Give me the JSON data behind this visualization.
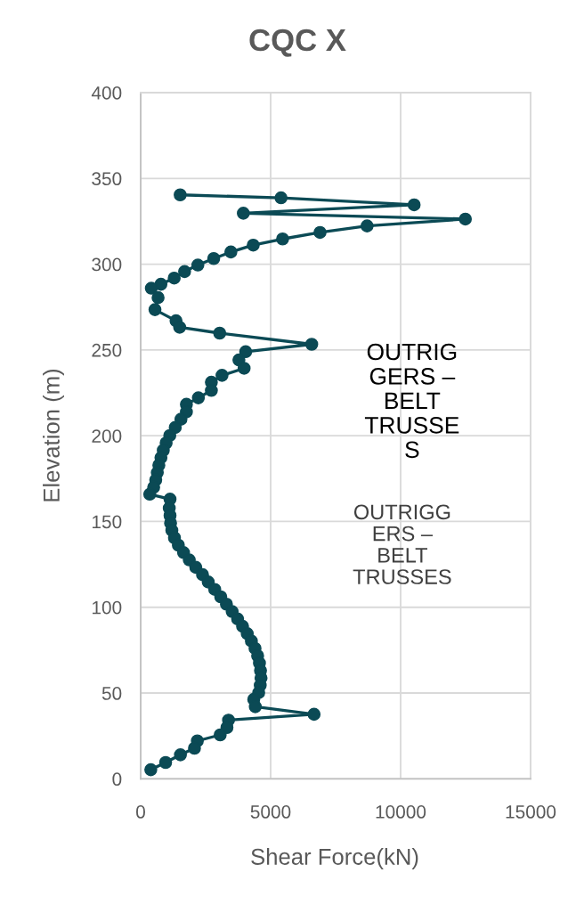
{
  "chart_data": {
    "type": "line",
    "title": "CQC X",
    "xlabel": "Shear Force(kN)",
    "ylabel": "Elevation (m)",
    "series": [
      {
        "color": "#0b4a55",
        "x": [
          1520,
          5400,
          10520,
          3950,
          12490,
          8710,
          6900,
          5460,
          4330,
          3470,
          2810,
          2200,
          1690,
          1290,
          780,
          410,
          670,
          550,
          1360,
          1500,
          3040,
          6580,
          4040,
          3780,
          3980,
          3130,
          2720,
          2720,
          2220,
          1760,
          1760,
          1550,
          1330,
          1120,
          980,
          870,
          780,
          700,
          640,
          580,
          500,
          350,
          1130,
          1100,
          1130,
          1150,
          1200,
          1300,
          1450,
          1650,
          1870,
          2120,
          2380,
          2600,
          2850,
          3080,
          3300,
          3520,
          3730,
          3920,
          4100,
          4260,
          4400,
          4500,
          4570,
          4610,
          4630,
          4600,
          4540,
          4350,
          4410,
          6670,
          3380,
          3320,
          3060,
          2180,
          2070,
          1530,
          960,
          390
        ],
        "values": [
          340.4,
          338.7,
          334.6,
          329.7,
          326.3,
          322.3,
          318.5,
          314.7,
          311.1,
          307.1,
          303.3,
          299.5,
          295.7,
          291.9,
          288.3,
          286.0,
          280.5,
          273.5,
          267.0,
          263.2,
          259.8,
          253.3,
          249.0,
          244.2,
          239.3,
          235.2,
          231.2,
          226.4,
          222.1,
          218.3,
          213.9,
          209.6,
          204.8,
          200.1,
          195.8,
          191.5,
          187.2,
          182.8,
          178.5,
          174.2,
          169.9,
          165.9,
          163.0,
          157.8,
          153.5,
          149.1,
          144.8,
          140.5,
          136.2,
          131.9,
          127.6,
          123.3,
          119.0,
          114.7,
          110.4,
          106.1,
          101.8,
          97.5,
          93.2,
          88.9,
          84.6,
          80.3,
          76.0,
          71.7,
          67.4,
          63.1,
          58.8,
          54.5,
          50.2,
          46.3,
          42.0,
          37.6,
          34.2,
          29.9,
          25.6,
          22.1,
          17.8,
          14.0,
          9.5,
          5.3
        ]
      }
    ],
    "xlim": [
      0,
      15000
    ],
    "ylim": [
      0,
      400
    ],
    "xticks": [
      0,
      5000,
      10000,
      15000
    ],
    "yticks": [
      0,
      50,
      100,
      150,
      200,
      250,
      300,
      350,
      400
    ],
    "grid": true,
    "marker": "circle",
    "line_style": "solid",
    "annotations": [
      "OUTRIG\nGERS –\nBELT\nTRUSSE\nS",
      "OUTRIGG\nERS –\nBELT\nTRUSSES"
    ]
  }
}
